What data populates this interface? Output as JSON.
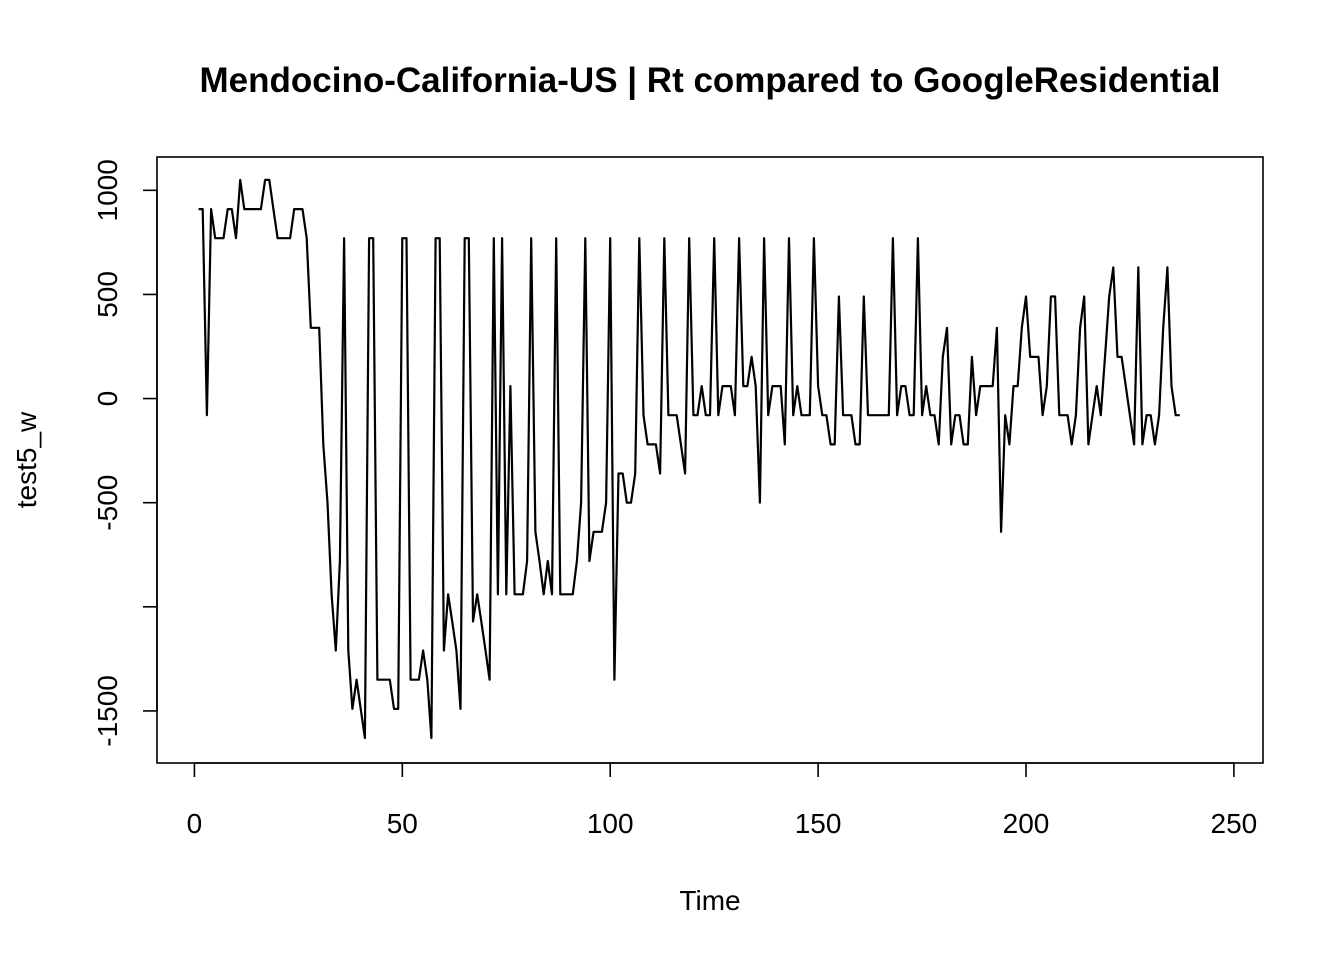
{
  "chart_data": {
    "type": "line",
    "title": "Mendocino-California-US | Rt compared to GoogleResidential",
    "xlabel": "Time",
    "ylabel": "test5_w",
    "xlim": [
      -9,
      257
    ],
    "ylim": [
      -1750,
      1160
    ],
    "x_ticks": [
      0,
      50,
      100,
      150,
      200,
      250
    ],
    "y_ticks": [
      -1500,
      -1000,
      -500,
      0,
      500,
      1000
    ],
    "y_tick_labels": [
      "-1500",
      "",
      "-500",
      "0",
      "500",
      "1000"
    ],
    "grid": false,
    "color": "#000000",
    "series": [
      {
        "values": [
          910,
          910,
          -80,
          910,
          770,
          770,
          770,
          910,
          910,
          770,
          1050,
          910,
          910,
          910,
          910,
          910,
          1050,
          1050,
          910,
          770,
          770,
          770,
          770,
          910,
          910,
          910,
          770,
          340,
          340,
          340,
          -220,
          -500,
          -940,
          -1210,
          -780,
          770,
          -1210,
          -1490,
          -1350,
          -1490,
          -1630,
          770,
          770,
          -1350,
          -1350,
          -1350,
          -1350,
          -1490,
          -1490,
          770,
          770,
          -1350,
          -1350,
          -1350,
          -1210,
          -1350,
          -1630,
          770,
          770,
          -1210,
          -940,
          -1070,
          -1210,
          -1490,
          770,
          770,
          -1070,
          -940,
          -1070,
          -1210,
          -1350,
          770,
          -940,
          770,
          -940,
          60,
          -940,
          -940,
          -940,
          -780,
          770,
          -640,
          -780,
          -940,
          -780,
          -940,
          770,
          -940,
          -940,
          -940,
          -940,
          -780,
          -500,
          770,
          -780,
          -640,
          -640,
          -640,
          -500,
          770,
          -1350,
          -360,
          -360,
          -500,
          -500,
          -360,
          770,
          -80,
          -220,
          -220,
          -220,
          -360,
          770,
          -80,
          -80,
          -80,
          -220,
          -360,
          770,
          -80,
          -80,
          60,
          -80,
          -80,
          770,
          -80,
          60,
          60,
          60,
          -80,
          770,
          60,
          60,
          200,
          60,
          -500,
          770,
          -80,
          60,
          60,
          60,
          -220,
          770,
          -80,
          60,
          -80,
          -80,
          -80,
          770,
          60,
          -80,
          -80,
          -220,
          -220,
          490,
          -80,
          -80,
          -80,
          -220,
          -220,
          490,
          -80,
          -80,
          -80,
          -80,
          -80,
          -80,
          770,
          -80,
          60,
          60,
          -80,
          -80,
          770,
          -80,
          60,
          -80,
          -80,
          -220,
          200,
          340,
          -220,
          -80,
          -80,
          -220,
          -220,
          200,
          -80,
          60,
          60,
          60,
          60,
          340,
          -640,
          -80,
          -220,
          60,
          60,
          340,
          490,
          200,
          200,
          200,
          -80,
          60,
          490,
          490,
          -80,
          -80,
          -80,
          -220,
          -80,
          340,
          490,
          -220,
          -80,
          60,
          -80,
          200,
          490,
          630,
          200,
          200,
          60,
          -80,
          -220,
          630,
          -220,
          -80,
          -80,
          -220,
          -80,
          340,
          630,
          60,
          -80,
          -80
        ]
      }
    ]
  }
}
